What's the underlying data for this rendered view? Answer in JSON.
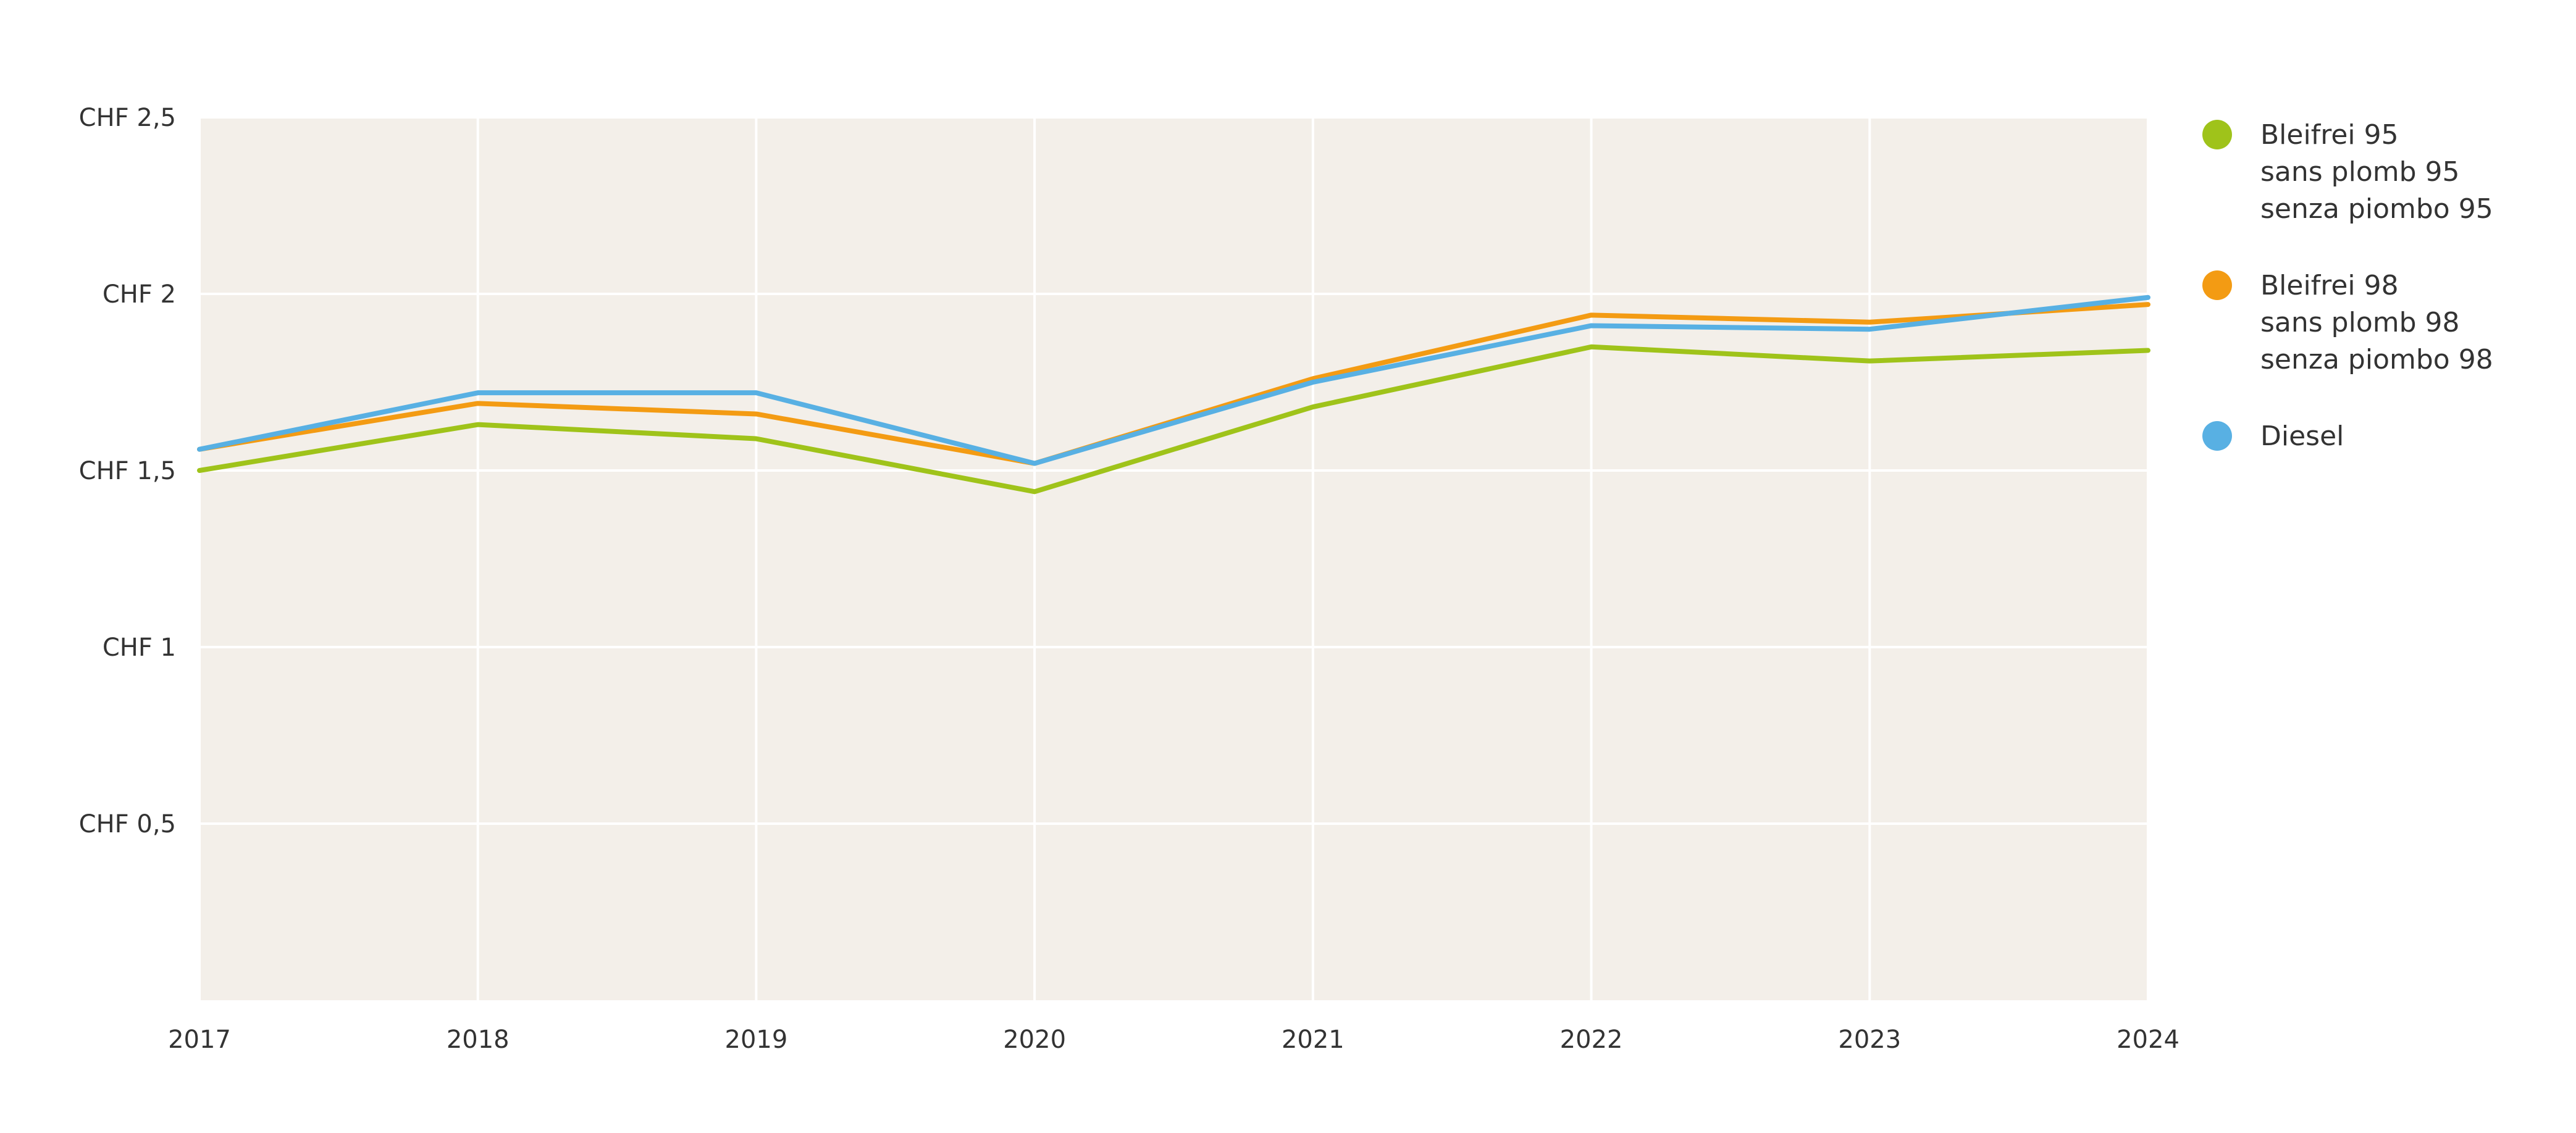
{
  "chart_data": {
    "type": "line",
    "title": "",
    "xlabel": "",
    "ylabel": "",
    "x": [
      "2017",
      "2018",
      "2019",
      "2020",
      "2021",
      "2022",
      "2023",
      "2024"
    ],
    "ylim": [
      0,
      2.5
    ],
    "yticks": [
      {
        "value": 0.5,
        "label": "CHF 0,5"
      },
      {
        "value": 1,
        "label": "CHF 1"
      },
      {
        "value": 1.5,
        "label": "CHF 1,5"
      },
      {
        "value": 2,
        "label": "CHF 2"
      },
      {
        "value": 2.5,
        "label": "CHF 2,5"
      }
    ],
    "grid": true,
    "legend_position": "right",
    "plot_background": "#f3efe9",
    "series": [
      {
        "legend": [
          "Bleifrei 95",
          "sans plomb 95",
          "senza piombo 95"
        ],
        "color": "#9fc31a",
        "values": [
          1.5,
          1.63,
          1.59,
          1.44,
          1.68,
          1.85,
          1.81,
          1.84
        ]
      },
      {
        "legend": [
          "Bleifrei 98",
          "sans plomb 98",
          "senza piombo 98"
        ],
        "color": "#f39b13",
        "values": [
          1.56,
          1.69,
          1.66,
          1.52,
          1.76,
          1.94,
          1.92,
          1.97
        ]
      },
      {
        "legend": [
          "Diesel"
        ],
        "color": "#58b0e3",
        "values": [
          1.56,
          1.72,
          1.72,
          1.52,
          1.75,
          1.91,
          1.9,
          1.99
        ]
      }
    ]
  }
}
